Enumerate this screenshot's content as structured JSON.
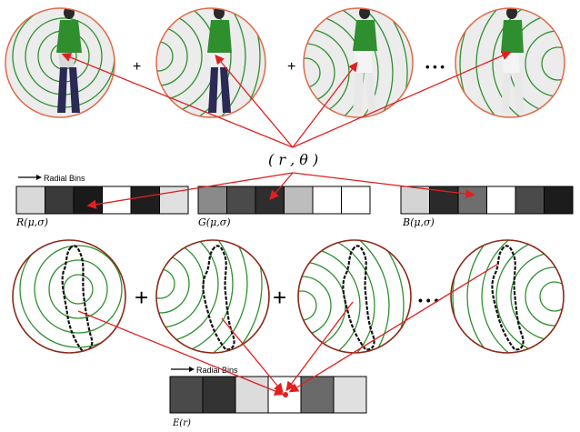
{
  "top_row": {
    "plus_1": "+",
    "plus_2": "+",
    "ellipsis": "• • •"
  },
  "center_label": "( r , θ )",
  "rgb_section": {
    "radial_bins_label": "Radial Bins",
    "channels": [
      {
        "label": "R(μ,σ)",
        "bins": [
          "#d9d9d9",
          "#3a3a3a",
          "#1a1a1a",
          "#ffffff",
          "#1e1e1e",
          "#e0e0e0"
        ]
      },
      {
        "label": "G(μ,σ)",
        "bins": [
          "#8a8a8a",
          "#4a4a4a",
          "#2e2e2e",
          "#bdbdbd",
          "#ffffff",
          "#ffffff"
        ]
      },
      {
        "label": "B(μ,σ)",
        "bins": [
          "#d4d4d4",
          "#2a2a2a",
          "#6e6e6e",
          "#ffffff",
          "#4a4a4a",
          "#1c1c1c"
        ]
      }
    ]
  },
  "bottom_row": {
    "plus_1": "+",
    "plus_2": "+",
    "ellipsis": "• • •"
  },
  "edge_section": {
    "radial_bins_label": "Radial Bins",
    "label": "E(r)",
    "bins": [
      "#4a4a4a",
      "#333333",
      "#dcdcdc",
      "#ffffff",
      "#6a6a6a",
      "#e0e0e0"
    ]
  },
  "colors": {
    "circle_border_top": "#e06a4a",
    "circle_border_bottom": "#8b2a1a",
    "ring_green": "#2f8f2f",
    "arrow_red": "#e02020"
  }
}
